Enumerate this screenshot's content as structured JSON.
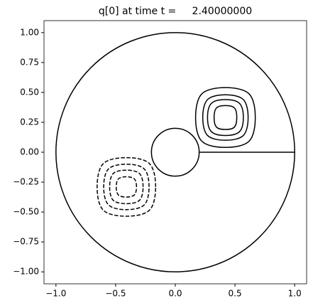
{
  "chart_data": {
    "type": "contour",
    "title": "q[0] at time t =     2.40000000",
    "xlim": [
      -1.1,
      1.1
    ],
    "ylim": [
      -1.1,
      1.1
    ],
    "xticks": [
      {
        "value": -1,
        "label": "−1.0"
      },
      {
        "value": -0.5,
        "label": "−0.5"
      },
      {
        "value": 0,
        "label": "0.0"
      },
      {
        "value": 0.5,
        "label": "0.5"
      },
      {
        "value": 1,
        "label": "1.0"
      }
    ],
    "yticks": [
      {
        "value": -1,
        "label": "−1.00"
      },
      {
        "value": -0.75,
        "label": "−0.75"
      },
      {
        "value": -0.5,
        "label": "−0.50"
      },
      {
        "value": -0.25,
        "label": "−0.25"
      },
      {
        "value": 0,
        "label": "0.00"
      },
      {
        "value": 0.25,
        "label": "0.25"
      },
      {
        "value": 0.5,
        "label": "0.50"
      },
      {
        "value": 0.75,
        "label": "0.75"
      },
      {
        "value": 1,
        "label": "1.00"
      }
    ],
    "color": "#000000",
    "circles": [
      {
        "cx": 0,
        "cy": 0,
        "r": 1
      },
      {
        "cx": 0,
        "cy": 0,
        "r": 0.2
      }
    ],
    "segments": [
      {
        "x": [
          0.2,
          1
        ],
        "y": [
          0,
          0
        ]
      }
    ],
    "contours": [
      {
        "dashed": false,
        "x": [
          0.67,
          0.618,
          0.42,
          0.222,
          0.17,
          0.222,
          0.42,
          0.618
        ],
        "y": [
          0.29,
          0.488,
          0.54,
          0.488,
          0.29,
          0.092,
          0.04,
          0.092
        ]
      },
      {
        "dashed": false,
        "x": [
          0.61,
          0.57,
          0.42,
          0.27,
          0.23,
          0.27,
          0.42,
          0.57
        ],
        "y": [
          0.29,
          0.44,
          0.48,
          0.44,
          0.29,
          0.14,
          0.1,
          0.14
        ]
      },
      {
        "dashed": false,
        "x": [
          0.57,
          0.538,
          0.42,
          0.302,
          0.27,
          0.302,
          0.42,
          0.538
        ],
        "y": [
          0.29,
          0.408,
          0.44,
          0.408,
          0.29,
          0.172,
          0.14,
          0.172
        ]
      },
      {
        "dashed": false,
        "x": [
          0.515,
          0.495,
          0.42,
          0.345,
          0.325,
          0.345,
          0.42,
          0.495
        ],
        "y": [
          0.29,
          0.37,
          0.39,
          0.37,
          0.29,
          0.21,
          0.19,
          0.21
        ]
      },
      {
        "dashed": true,
        "x": [
          -0.165,
          -0.216,
          -0.41,
          -0.604,
          -0.655,
          -0.604,
          -0.41,
          -0.216
        ],
        "y": [
          -0.29,
          -0.096,
          -0.045,
          -0.096,
          -0.29,
          -0.484,
          -0.535,
          -0.484
        ]
      },
      {
        "dashed": true,
        "x": [
          -0.22,
          -0.26,
          -0.41,
          -0.56,
          -0.6,
          -0.56,
          -0.41,
          -0.26
        ],
        "y": [
          -0.29,
          -0.14,
          -0.1,
          -0.14,
          -0.29,
          -0.44,
          -0.48,
          -0.44
        ]
      },
      {
        "dashed": true,
        "x": [
          -0.27,
          -0.299,
          -0.41,
          -0.521,
          -0.55,
          -0.521,
          -0.41,
          -0.299
        ],
        "y": [
          -0.29,
          -0.179,
          -0.15,
          -0.179,
          -0.29,
          -0.401,
          -0.43,
          -0.401
        ]
      },
      {
        "dashed": true,
        "x": [
          -0.325,
          -0.343,
          -0.41,
          -0.477,
          -0.495,
          -0.477,
          -0.41,
          -0.343
        ],
        "y": [
          -0.29,
          -0.223,
          -0.205,
          -0.223,
          -0.29,
          -0.357,
          -0.375,
          -0.357
        ]
      }
    ]
  }
}
